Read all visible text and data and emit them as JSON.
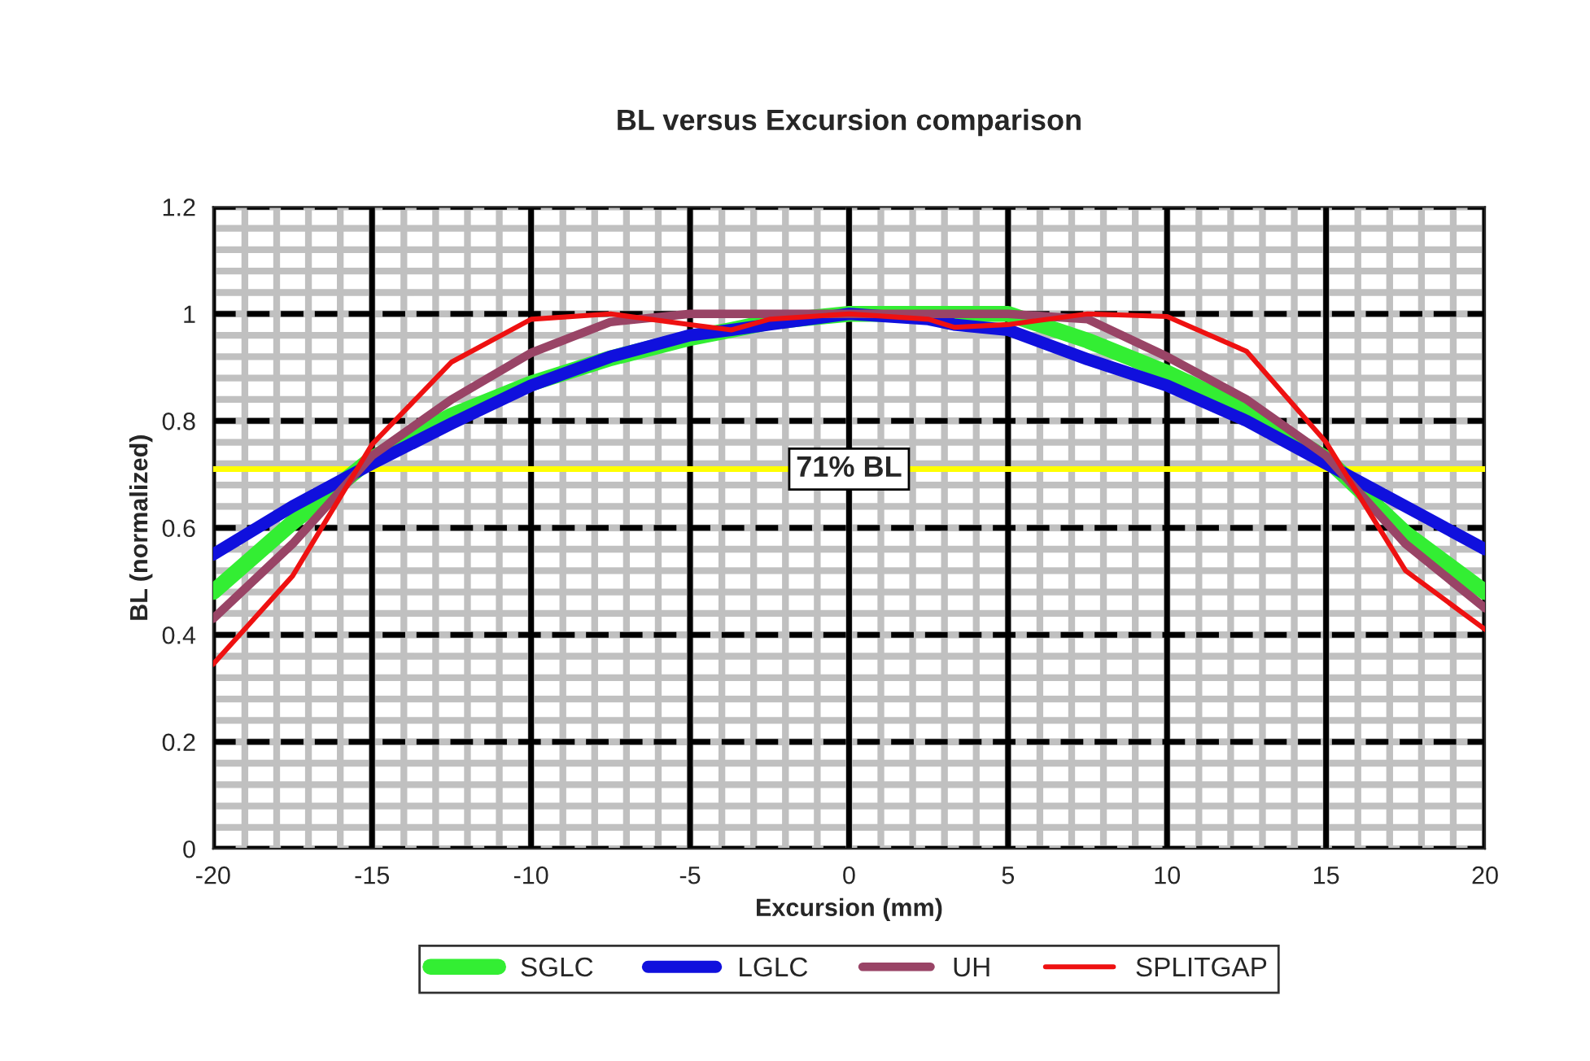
{
  "chart_data": {
    "type": "line",
    "title": "BL versus Excursion comparison",
    "xlabel": "Excursion (mm)",
    "ylabel": "BL (normalized)",
    "x": [
      -20,
      -17.5,
      -15,
      -12.5,
      -10,
      -7.5,
      -5,
      -3.7,
      -2.5,
      0,
      2.5,
      3.3,
      5,
      7.5,
      10,
      12.5,
      15,
      17.5,
      20
    ],
    "series": [
      {
        "name": "SGLC",
        "color": "#33ee33",
        "values": [
          0.48,
          0.61,
          0.73,
          0.81,
          0.87,
          0.917,
          0.955,
          0.97,
          0.985,
          1.0,
          1.0,
          1.0,
          1.0,
          0.95,
          0.89,
          0.82,
          0.73,
          0.59,
          0.48
        ]
      },
      {
        "name": "LGLC",
        "color": "#1010dd",
        "values": [
          0.55,
          0.64,
          0.72,
          0.795,
          0.866,
          0.92,
          0.96,
          0.97,
          0.98,
          1.0,
          0.99,
          0.98,
          0.97,
          0.915,
          0.866,
          0.8,
          0.72,
          0.64,
          0.56
        ]
      },
      {
        "name": "UH",
        "color": "#994466",
        "values": [
          0.43,
          0.57,
          0.735,
          0.84,
          0.927,
          0.985,
          1.0,
          1.0,
          1.0,
          1.0,
          1.0,
          1.0,
          1.0,
          0.99,
          0.92,
          0.84,
          0.735,
          0.57,
          0.45
        ]
      },
      {
        "name": "SPLITGAP",
        "color": "#ee1111",
        "values": [
          0.345,
          0.51,
          0.756,
          0.91,
          0.99,
          1.0,
          0.98,
          0.97,
          0.99,
          1.0,
          0.99,
          0.975,
          0.98,
          1.0,
          0.995,
          0.93,
          0.76,
          0.52,
          0.41
        ]
      }
    ],
    "xlim": [
      -20,
      20
    ],
    "xticks": [
      -20,
      -15,
      -10,
      -5,
      0,
      5,
      10,
      15,
      20
    ],
    "ylim": [
      0,
      1.2
    ],
    "yticks": [
      0,
      0.2,
      0.4,
      0.6,
      0.8,
      1,
      1.2
    ],
    "ref_lines": [
      {
        "axis": "y",
        "value": 0.71,
        "label": "71% BL",
        "color": "#ffff00"
      }
    ],
    "grid": true,
    "legend": "bottom",
    "line_style": "solid",
    "marker": "none"
  }
}
